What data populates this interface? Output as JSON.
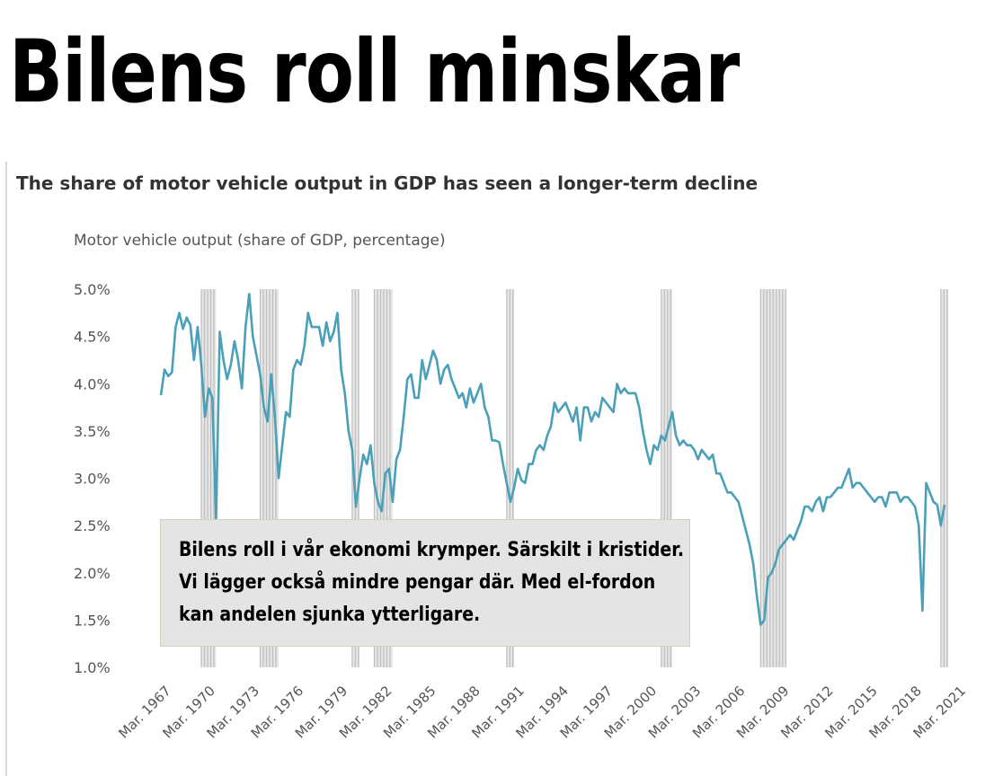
{
  "headline": "Bilens roll minskar",
  "callout": {
    "lines": [
      "Bilens roll i vår ekonomi krymper. Särskilt i kristider.",
      "Vi lägger också mindre pengar där. Med el-fordon",
      "kan andelen sjunka ytterligare."
    ]
  },
  "chart_data": {
    "type": "line",
    "title": "The share of motor vehicle output in GDP has seen a longer-term decline",
    "ylabel": "Motor vehicle output (share of GDP, percentage)",
    "ylim": [
      1.0,
      5.0
    ],
    "y_ticks": [
      "5.0%",
      "4.5%",
      "4.0%",
      "3.5%",
      "3.0%",
      "2.5%",
      "2.0%",
      "1.5%",
      "1.0%"
    ],
    "x_ticks": [
      "Mar. 1967",
      "Mar. 1970",
      "Mar. 1973",
      "Mar. 1976",
      "Mar. 1979",
      "Mar. 1982",
      "Mar. 1985",
      "Mar. 1988",
      "Mar. 1991",
      "Mar. 1994",
      "Mar. 1997",
      "Mar. 2000",
      "Mar. 2003",
      "Mar. 2006",
      "Mar. 2009",
      "Mar. 2012",
      "Mar. 2015",
      "Mar. 2018",
      "Mar. 2021"
    ],
    "line_color": "#4aa0b8",
    "recession_color": "#bdbdbd",
    "recessions": [
      [
        1969.75,
        1970.75
      ],
      [
        1973.75,
        1975.0
      ],
      [
        1980.0,
        1980.5
      ],
      [
        1981.5,
        1982.75
      ],
      [
        1990.5,
        1991.0
      ],
      [
        2001.0,
        2001.75
      ],
      [
        2007.75,
        2009.5
      ],
      [
        2020.0,
        2020.5
      ]
    ],
    "series": [
      {
        "points": [
          [
            1967.0,
            3.88
          ],
          [
            1967.25,
            4.15
          ],
          [
            1967.5,
            4.08
          ],
          [
            1967.75,
            4.12
          ],
          [
            1968.0,
            4.6
          ],
          [
            1968.25,
            4.75
          ],
          [
            1968.5,
            4.58
          ],
          [
            1968.75,
            4.7
          ],
          [
            1969.0,
            4.62
          ],
          [
            1969.25,
            4.25
          ],
          [
            1969.5,
            4.6
          ],
          [
            1969.75,
            4.2
          ],
          [
            1970.0,
            3.65
          ],
          [
            1970.25,
            3.95
          ],
          [
            1970.5,
            3.85
          ],
          [
            1970.75,
            2.55
          ],
          [
            1971.0,
            4.55
          ],
          [
            1971.25,
            4.25
          ],
          [
            1971.5,
            4.05
          ],
          [
            1971.75,
            4.2
          ],
          [
            1972.0,
            4.45
          ],
          [
            1972.25,
            4.25
          ],
          [
            1972.5,
            3.95
          ],
          [
            1972.75,
            4.6
          ],
          [
            1973.0,
            4.95
          ],
          [
            1973.25,
            4.5
          ],
          [
            1973.5,
            4.3
          ],
          [
            1973.75,
            4.1
          ],
          [
            1974.0,
            3.75
          ],
          [
            1974.25,
            3.6
          ],
          [
            1974.5,
            4.1
          ],
          [
            1974.75,
            3.65
          ],
          [
            1975.0,
            3.0
          ],
          [
            1975.25,
            3.35
          ],
          [
            1975.5,
            3.7
          ],
          [
            1975.75,
            3.65
          ],
          [
            1976.0,
            4.15
          ],
          [
            1976.25,
            4.25
          ],
          [
            1976.5,
            4.2
          ],
          [
            1976.75,
            4.4
          ],
          [
            1977.0,
            4.75
          ],
          [
            1977.25,
            4.6
          ],
          [
            1977.5,
            4.6
          ],
          [
            1977.75,
            4.6
          ],
          [
            1978.0,
            4.4
          ],
          [
            1978.25,
            4.65
          ],
          [
            1978.5,
            4.45
          ],
          [
            1978.75,
            4.55
          ],
          [
            1979.0,
            4.75
          ],
          [
            1979.25,
            4.15
          ],
          [
            1979.5,
            3.9
          ],
          [
            1979.75,
            3.5
          ],
          [
            1980.0,
            3.3
          ],
          [
            1980.25,
            2.7
          ],
          [
            1980.5,
            3.0
          ],
          [
            1980.75,
            3.25
          ],
          [
            1981.0,
            3.15
          ],
          [
            1981.25,
            3.35
          ],
          [
            1981.5,
            2.95
          ],
          [
            1981.75,
            2.75
          ],
          [
            1982.0,
            2.65
          ],
          [
            1982.25,
            3.05
          ],
          [
            1982.5,
            3.1
          ],
          [
            1982.75,
            2.75
          ],
          [
            1983.0,
            3.2
          ],
          [
            1983.25,
            3.3
          ],
          [
            1983.5,
            3.65
          ],
          [
            1983.75,
            4.05
          ],
          [
            1984.0,
            4.1
          ],
          [
            1984.25,
            3.85
          ],
          [
            1984.5,
            3.85
          ],
          [
            1984.75,
            4.25
          ],
          [
            1985.0,
            4.05
          ],
          [
            1985.25,
            4.2
          ],
          [
            1985.5,
            4.35
          ],
          [
            1985.75,
            4.25
          ],
          [
            1986.0,
            4.0
          ],
          [
            1986.25,
            4.15
          ],
          [
            1986.5,
            4.2
          ],
          [
            1986.75,
            4.05
          ],
          [
            1987.0,
            3.95
          ],
          [
            1987.25,
            3.85
          ],
          [
            1987.5,
            3.9
          ],
          [
            1987.75,
            3.75
          ],
          [
            1988.0,
            3.95
          ],
          [
            1988.25,
            3.8
          ],
          [
            1988.5,
            3.9
          ],
          [
            1988.75,
            4.0
          ],
          [
            1989.0,
            3.75
          ],
          [
            1989.25,
            3.65
          ],
          [
            1989.5,
            3.4
          ],
          [
            1989.75,
            3.4
          ],
          [
            1990.0,
            3.38
          ],
          [
            1990.25,
            3.15
          ],
          [
            1990.5,
            2.95
          ],
          [
            1990.75,
            2.75
          ],
          [
            1991.0,
            2.9
          ],
          [
            1991.25,
            3.1
          ],
          [
            1991.5,
            2.98
          ],
          [
            1991.75,
            2.95
          ],
          [
            1992.0,
            3.15
          ],
          [
            1992.25,
            3.15
          ],
          [
            1992.5,
            3.3
          ],
          [
            1992.75,
            3.35
          ],
          [
            1993.0,
            3.3
          ],
          [
            1993.25,
            3.45
          ],
          [
            1993.5,
            3.55
          ],
          [
            1993.75,
            3.8
          ],
          [
            1994.0,
            3.7
          ],
          [
            1994.25,
            3.75
          ],
          [
            1994.5,
            3.8
          ],
          [
            1994.75,
            3.7
          ],
          [
            1995.0,
            3.6
          ],
          [
            1995.25,
            3.75
          ],
          [
            1995.5,
            3.4
          ],
          [
            1995.75,
            3.75
          ],
          [
            1996.0,
            3.75
          ],
          [
            1996.25,
            3.6
          ],
          [
            1996.5,
            3.7
          ],
          [
            1996.75,
            3.65
          ],
          [
            1997.0,
            3.85
          ],
          [
            1997.25,
            3.8
          ],
          [
            1997.5,
            3.75
          ],
          [
            1997.75,
            3.7
          ],
          [
            1998.0,
            4.0
          ],
          [
            1998.25,
            3.9
          ],
          [
            1998.5,
            3.95
          ],
          [
            1998.75,
            3.9
          ],
          [
            1999.0,
            3.9
          ],
          [
            1999.25,
            3.9
          ],
          [
            1999.5,
            3.75
          ],
          [
            1999.75,
            3.5
          ],
          [
            2000.0,
            3.3
          ],
          [
            2000.25,
            3.15
          ],
          [
            2000.5,
            3.35
          ],
          [
            2000.75,
            3.3
          ],
          [
            2001.0,
            3.45
          ],
          [
            2001.25,
            3.4
          ],
          [
            2001.5,
            3.55
          ],
          [
            2001.75,
            3.7
          ],
          [
            2002.0,
            3.45
          ],
          [
            2002.25,
            3.35
          ],
          [
            2002.5,
            3.4
          ],
          [
            2002.75,
            3.35
          ],
          [
            2003.0,
            3.35
          ],
          [
            2003.25,
            3.3
          ],
          [
            2003.5,
            3.2
          ],
          [
            2003.75,
            3.3
          ],
          [
            2004.0,
            3.25
          ],
          [
            2004.25,
            3.2
          ],
          [
            2004.5,
            3.25
          ],
          [
            2004.75,
            3.05
          ],
          [
            2005.0,
            3.05
          ],
          [
            2005.25,
            2.95
          ],
          [
            2005.5,
            2.85
          ],
          [
            2005.75,
            2.85
          ],
          [
            2006.0,
            2.8
          ],
          [
            2006.25,
            2.75
          ],
          [
            2006.5,
            2.6
          ],
          [
            2006.75,
            2.45
          ],
          [
            2007.0,
            2.3
          ],
          [
            2007.25,
            2.1
          ],
          [
            2007.5,
            1.75
          ],
          [
            2007.75,
            1.45
          ],
          [
            2008.0,
            1.5
          ],
          [
            2008.25,
            1.95
          ],
          [
            2008.5,
            2.0
          ],
          [
            2008.75,
            2.1
          ],
          [
            2009.0,
            2.25
          ],
          [
            2009.25,
            2.3
          ],
          [
            2009.5,
            2.35
          ],
          [
            2009.75,
            2.4
          ],
          [
            2010.0,
            2.35
          ],
          [
            2010.25,
            2.45
          ],
          [
            2010.5,
            2.55
          ],
          [
            2010.75,
            2.7
          ],
          [
            2011.0,
            2.7
          ],
          [
            2011.25,
            2.65
          ],
          [
            2011.5,
            2.75
          ],
          [
            2011.75,
            2.8
          ],
          [
            2012.0,
            2.65
          ],
          [
            2012.25,
            2.8
          ],
          [
            2012.5,
            2.8
          ],
          [
            2012.75,
            2.85
          ],
          [
            2013.0,
            2.9
          ],
          [
            2013.25,
            2.9
          ],
          [
            2013.5,
            3.0
          ],
          [
            2013.75,
            3.1
          ],
          [
            2014.0,
            2.9
          ],
          [
            2014.25,
            2.95
          ],
          [
            2014.5,
            2.95
          ],
          [
            2014.75,
            2.9
          ],
          [
            2015.0,
            2.85
          ],
          [
            2015.25,
            2.8
          ],
          [
            2015.5,
            2.75
          ],
          [
            2015.75,
            2.8
          ],
          [
            2016.0,
            2.8
          ],
          [
            2016.25,
            2.7
          ],
          [
            2016.5,
            2.85
          ],
          [
            2016.75,
            2.85
          ],
          [
            2017.0,
            2.85
          ],
          [
            2017.25,
            2.75
          ],
          [
            2017.5,
            2.8
          ],
          [
            2017.75,
            2.8
          ],
          [
            2018.0,
            2.75
          ],
          [
            2018.25,
            2.7
          ],
          [
            2018.5,
            2.5
          ],
          [
            2018.75,
            1.6
          ],
          [
            2019.0,
            2.95
          ],
          [
            2019.25,
            2.85
          ],
          [
            2019.5,
            2.75
          ],
          [
            2019.75,
            2.72
          ],
          [
            2020.0,
            2.5
          ],
          [
            2020.25,
            2.72
          ]
        ]
      }
    ],
    "grid": false,
    "legend": false
  }
}
